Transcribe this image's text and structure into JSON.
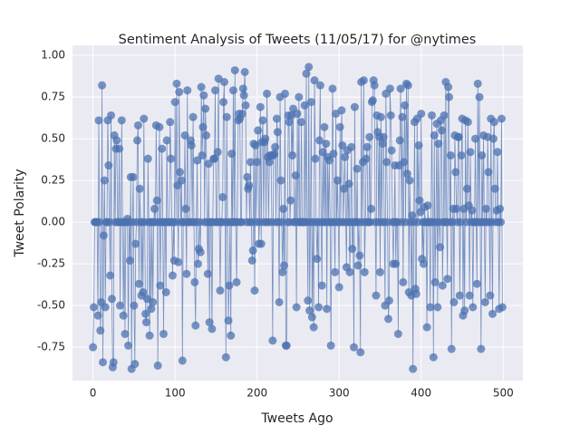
{
  "chart_data": {
    "type": "line",
    "title": "Sentiment Analysis of Tweets (11/05/17) for @nytimes",
    "x_label": "Tweets Ago",
    "y_label": "Tweet Polarity",
    "xlim": [
      -25,
      524
    ],
    "ylim": [
      -0.95,
      1.06
    ],
    "xticks": [
      0,
      100,
      200,
      300,
      400,
      500
    ],
    "yticks": [
      -0.75,
      {
        "value": -0.5,
        "label": "-0.50"
      },
      -0.25,
      {
        "value": 0,
        "label": "0.00"
      },
      0.25,
      {
        "value": 0.5,
        "label": "0.50"
      },
      0.75,
      {
        "value": 1,
        "label": "1.00"
      }
    ],
    "grid": true,
    "color": "#4c72b0",
    "x": [
      0,
      1,
      2,
      3,
      4,
      5,
      6,
      7,
      8,
      9,
      10,
      11,
      12,
      13,
      14,
      15,
      16,
      17,
      18,
      19,
      20,
      21,
      22,
      23,
      24,
      25,
      26,
      27,
      28,
      29,
      30,
      31,
      32,
      33,
      34,
      35,
      36,
      37,
      38,
      39,
      40,
      41,
      42,
      43,
      44,
      45,
      46,
      47,
      48,
      49,
      50,
      51,
      52,
      53,
      54,
      55,
      56,
      57,
      58,
      59,
      60,
      61,
      62,
      63,
      64,
      65,
      66,
      67,
      68,
      69,
      70,
      71,
      72,
      73,
      74,
      75,
      76,
      77,
      78,
      79,
      80,
      81,
      82,
      83,
      84,
      85,
      86,
      87,
      88,
      89,
      90,
      91,
      92,
      93,
      94,
      95,
      96,
      97,
      98,
      99,
      100,
      101,
      102,
      103,
      104,
      105,
      106,
      107,
      108,
      109,
      110,
      111,
      112,
      113,
      114,
      115,
      116,
      117,
      118,
      119,
      120,
      121,
      122,
      123,
      124,
      125,
      126,
      127,
      128,
      129,
      130,
      131,
      132,
      133,
      134,
      135,
      136,
      137,
      138,
      139,
      140,
      141,
      142,
      143,
      144,
      145,
      146,
      147,
      148,
      149,
      150,
      151,
      152,
      153,
      154,
      155,
      156,
      157,
      158,
      159,
      160,
      161,
      162,
      163,
      164,
      165,
      166,
      167,
      168,
      169,
      170,
      171,
      172,
      173,
      174,
      175,
      176,
      177,
      178,
      179,
      180,
      181,
      182,
      183,
      184,
      185,
      186,
      187,
      188,
      189,
      190,
      191,
      192,
      193,
      194,
      195,
      196,
      197,
      198,
      199,
      200,
      201,
      202,
      203,
      204,
      205,
      206,
      207,
      208,
      209,
      210,
      211,
      212,
      213,
      214,
      215,
      216,
      217,
      218,
      219,
      220,
      221,
      222,
      223,
      224,
      225,
      226,
      227,
      228,
      229,
      230,
      231,
      232,
      233,
      234,
      235,
      236,
      237,
      238,
      239,
      240,
      241,
      242,
      243,
      244,
      245,
      246,
      247,
      248,
      249,
      250,
      251,
      252,
      253,
      254,
      255,
      256,
      257,
      258,
      259,
      260,
      261,
      262,
      263,
      264,
      265,
      266,
      267,
      268,
      269,
      270,
      271,
      272,
      273,
      274,
      275,
      276,
      277,
      278,
      279,
      280,
      281,
      282,
      283,
      284,
      285,
      286,
      287,
      288,
      289,
      290,
      291,
      292,
      293,
      294,
      295,
      296,
      297,
      298,
      299,
      300,
      301,
      302,
      303,
      304,
      305,
      306,
      307,
      308,
      309,
      310,
      311,
      312,
      313,
      314,
      315,
      316,
      317,
      318,
      319,
      320,
      321,
      322,
      323,
      324,
      325,
      326,
      327,
      328,
      329,
      330,
      331,
      332,
      333,
      334,
      335,
      336,
      337,
      338,
      339,
      340,
      341,
      342,
      343,
      344,
      345,
      346,
      347,
      348,
      349,
      350,
      351,
      352,
      353,
      354,
      355,
      356,
      357,
      358,
      359,
      360,
      361,
      362,
      363,
      364,
      365,
      366,
      367,
      368,
      369,
      370,
      371,
      372,
      373,
      374,
      375,
      376,
      377,
      378,
      379,
      380,
      381,
      382,
      383,
      384,
      385,
      386,
      387,
      388,
      389,
      390,
      391,
      392,
      393,
      394,
      395,
      396,
      397,
      398,
      399,
      400,
      401,
      402,
      403,
      404,
      405,
      406,
      407,
      408,
      409,
      410,
      411,
      412,
      413,
      414,
      415,
      416,
      417,
      418,
      419,
      420,
      421,
      422,
      423,
      424,
      425,
      426,
      427,
      428,
      429,
      430,
      431,
      432,
      433,
      434,
      435,
      436,
      437,
      438,
      439,
      440,
      441,
      442,
      443,
      444,
      445,
      446,
      447,
      448,
      449,
      450,
      451,
      452,
      453,
      454,
      455,
      456,
      457,
      458,
      459,
      460,
      461,
      462,
      463,
      464,
      465,
      466,
      467,
      468,
      469,
      470,
      471,
      472,
      473,
      474,
      475,
      476,
      477,
      478,
      479,
      480,
      481,
      482,
      483,
      484,
      485,
      486,
      487,
      488,
      489,
      490,
      491,
      492,
      493,
      494,
      495,
      496,
      497,
      498,
      499
    ],
    "values": [
      -0.75,
      -0.51,
      0,
      0,
      0,
      0,
      -0.56,
      0.61,
      0,
      -0.65,
      -0.48,
      0.82,
      -0.84,
      -0.08,
      0.25,
      -0.51,
      0,
      0,
      0.61,
      0.34,
      0,
      -0.32,
      0.64,
      -0.46,
      -0.87,
      -0.84,
      0.52,
      0,
      0.44,
      0.49,
      0,
      0,
      0.44,
      -0.5,
      0,
      0.61,
      0,
      -0.56,
      0,
      -0.67,
      0,
      0,
      0.02,
      -0.74,
      0,
      -0.23,
      0.27,
      -0.88,
      0,
      0.27,
      -0.5,
      -0.85,
      -0.13,
      0,
      0.49,
      0.58,
      -0.37,
      0.2,
      0,
      -0.44,
      0,
      -0.42,
      0.62,
      0,
      -0.55,
      -0.6,
      -0.46,
      0.38,
      0,
      -0.68,
      0,
      -0.52,
      0,
      -0.48,
      0,
      0.08,
      0,
      0.58,
      0.13,
      -0.86,
      0,
      0.57,
      -0.38,
      0,
      0.44,
      0,
      -0.67,
      0,
      0,
      -0.42,
      0.49,
      0,
      0,
      0,
      0.6,
      0.38,
      0,
      -0.32,
      0,
      -0.23,
      0.72,
      0,
      0.83,
      0.22,
      -0.24,
      0.78,
      0.3,
      0,
      0.25,
      -0.83,
      0,
      0,
      0.52,
      0.08,
      -0.31,
      0.79,
      0,
      0,
      0,
      0.49,
      0.46,
      0,
      0.63,
      0,
      -0.36,
      -0.62,
      0,
      0.37,
      -0.25,
      -0.16,
      0,
      -0.18,
      0.81,
      0.4,
      0.57,
      0.76,
      0,
      0.68,
      0.52,
      0,
      -0.31,
      0.35,
      -0.6,
      0,
      0,
      -0.64,
      0,
      0.38,
      0.38,
      0.79,
      0,
      0,
      0.42,
      0.86,
      0,
      -0.41,
      0,
      0,
      0.15,
      0.72,
      0.84,
      0,
      -0.81,
      0.63,
      0,
      -0.59,
      -0.38,
      0,
      -0.68,
      0.41,
      0,
      0.79,
      0,
      0.91,
      0,
      -0.36,
      0,
      0.61,
      0.65,
      0.62,
      0,
      0,
      0.65,
      0.8,
      0.76,
      0.9,
      0.7,
      0,
      0.27,
      0.2,
      0.22,
      0,
      0.36,
      0,
      -0.23,
      -0.17,
      0.47,
      -0.41,
      0.46,
      0,
      0.36,
      0.55,
      -0.13,
      0,
      0.69,
      -0.13,
      0.48,
      0.61,
      0,
      0.48,
      0.5,
      0,
      0.77,
      0.39,
      0,
      0.36,
      0.4,
      0.4,
      0,
      -0.71,
      0.4,
      0.41,
      0.45,
      0,
      0.62,
      0.54,
      0,
      -0.48,
      0.75,
      0.25,
      0,
      -0.3,
      0.08,
      -0.26,
      0.77,
      -0.74,
      -0.74,
      0,
      0.64,
      0.6,
      0,
      0.13,
      0.64,
      0.4,
      0.68,
      0,
      0,
      0.28,
      -0.51,
      0.65,
      0,
      0.75,
      0,
      0,
      0.6,
      0,
      0,
      0,
      0.7,
      0,
      0.89,
      0,
      -0.47,
      0.93,
      -0.53,
      0,
      0.72,
      -0.57,
      0,
      -0.63,
      0.85,
      0.38,
      0,
      -0.22,
      0,
      -0.51,
      0.49,
      0.82,
      0,
      -0.38,
      0.42,
      0,
      0.57,
      0,
      0.47,
      -0.52,
      0.39,
      0,
      0.37,
      0,
      -0.74,
      0,
      0.8,
      0.41,
      0,
      -0.3,
      0.65,
      0,
      0.25,
      0,
      -0.39,
      0.57,
      0,
      0.67,
      0.46,
      0,
      0.2,
      0.39,
      0,
      -0.27,
      0.43,
      0,
      0.23,
      -0.3,
      0,
      0.45,
      -0.16,
      0,
      -0.75,
      0.69,
      0,
      0,
      0.32,
      -0.26,
      0,
      -0.2,
      -0.78,
      0.84,
      0,
      0.36,
      0.85,
      -0.3,
      0,
      0.38,
      0.45,
      0,
      0,
      0.51,
      0,
      0.08,
      0.72,
      0.73,
      0.85,
      0.82,
      0,
      -0.44,
      0.64,
      0.54,
      0,
      0.51,
      -0.3,
      0.63,
      0,
      0.47,
      0.51,
      0,
      -0.5,
      0.77,
      0.36,
      0,
      -0.58,
      -0.47,
      0.8,
      0.64,
      0.43,
      0,
      -0.25,
      0,
      0.34,
      -0.25,
      0,
      0,
      -0.67,
      0.34,
      0.49,
      0.8,
      0,
      0.63,
      -0.36,
      0.36,
      0.7,
      0,
      0.83,
      0.29,
      0.82,
      -0.42,
      0.25,
      0,
      -0.44,
      0.04,
      -0.88,
      0,
      0.6,
      -0.4,
      -0.43,
      0.62,
      0,
      0.46,
      0.13,
      0.06,
      0.65,
      -0.22,
      0,
      -0.25,
      0.09,
      0,
      0,
      -0.63,
      0.1,
      0,
      0,
      -0.51,
      0,
      0.64,
      0,
      -0.81,
      0.52,
      -0.36,
      0,
      0.59,
      -0.51,
      0.47,
      0,
      -0.15,
      0.61,
      0.55,
      -0.38,
      0,
      0.64,
      0,
      0.84,
      0,
      -0.34,
      0.81,
      0.75,
      0,
      0.4,
      -0.76,
      0,
      0.08,
      -0.48,
      0.52,
      0.3,
      0.08,
      0,
      0.51,
      0.51,
      -0.44,
      0,
      0.4,
      0.62,
      -0.56,
      0.08,
      -0.53,
      0.61,
      0,
      0.2,
      0.6,
      0.1,
      -0.44,
      0.42,
      0,
      0.07,
      -0.51,
      0,
      0,
      0.5,
      0,
      -0.37,
      0.83,
      0,
      0.75,
      0,
      -0.76,
      0.4,
      0,
      0.52,
      0,
      -0.48,
      0.08,
      0,
      0.51,
      0.3,
      0,
      -0.44,
      0.62,
      0,
      -0.55,
      0.5,
      0.6,
      0.2,
      0,
      0.07,
      0.42,
      0,
      -0.52,
      0.08,
      0,
      0.62,
      -0.51
    ]
  }
}
